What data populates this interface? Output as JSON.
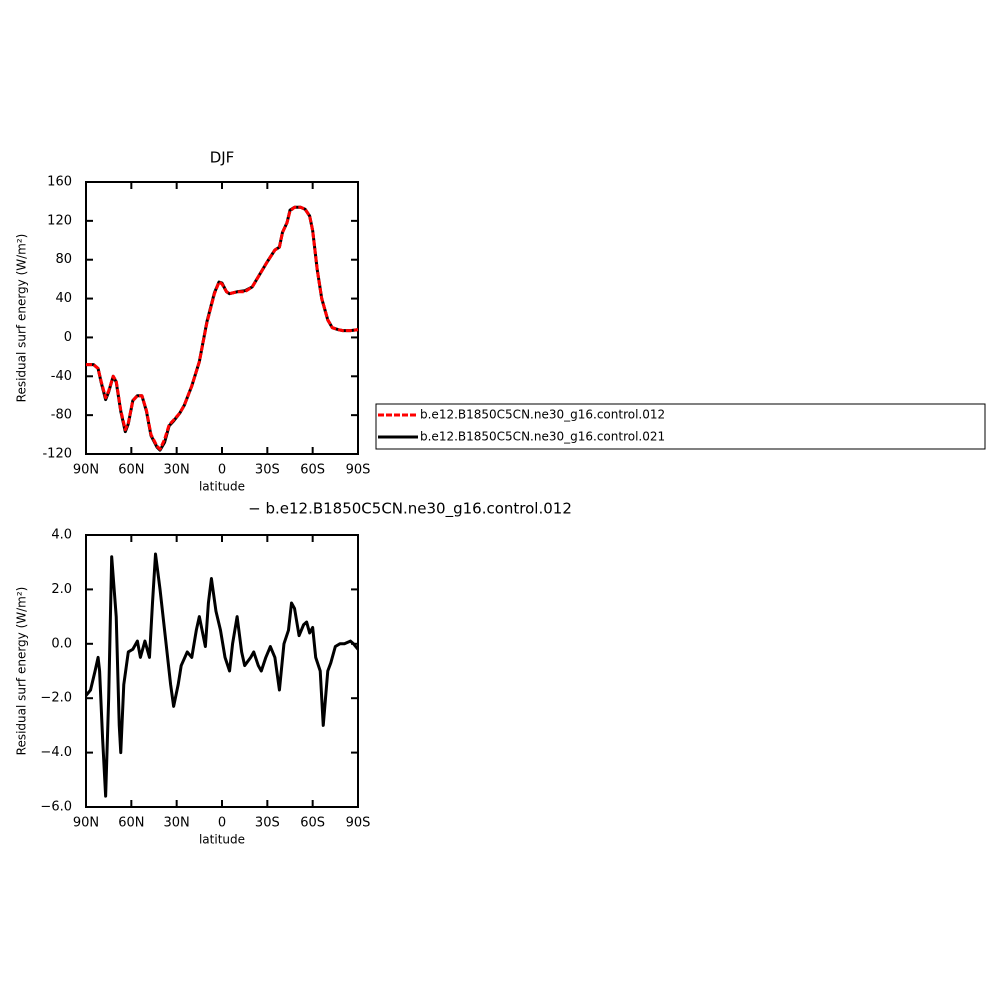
{
  "chart_data": [
    {
      "type": "line",
      "title": "DJF",
      "xlabel": "latitude",
      "ylabel": "Residual surf energy (W/m²)",
      "x": [
        90,
        85,
        82,
        80,
        77,
        75,
        72,
        70,
        67,
        64,
        62,
        59,
        56,
        53,
        50,
        47,
        43,
        41,
        38,
        35,
        32,
        28,
        25,
        20,
        15,
        10,
        5,
        2,
        0,
        -3,
        -5,
        -10,
        -15,
        -20,
        -25,
        -30,
        -35,
        -38,
        -40,
        -43,
        -45,
        -48,
        -52,
        -55,
        -58,
        -60,
        -63,
        -66,
        -70,
        -73,
        -77,
        -80,
        -85,
        -90
      ],
      "series": [
        {
          "name": "b.e12.B1850C5CN.ne30_g16.control.012",
          "color": "#ff0000",
          "dashed": true,
          "values": [
            -28,
            -28,
            -32,
            -45,
            -62,
            -55,
            -40,
            -45,
            -75,
            -95,
            -88,
            -65,
            -60,
            -60,
            -75,
            -100,
            -112,
            -115,
            -105,
            -90,
            -85,
            -78,
            -70,
            -50,
            -25,
            15,
            45,
            57,
            55,
            47,
            45,
            47,
            47,
            52,
            65,
            78,
            90,
            93,
            108,
            118,
            130,
            134,
            134,
            132,
            125,
            110,
            70,
            40,
            18,
            10,
            8,
            7,
            7,
            8
          ]
        },
        {
          "name": "b.e12.B1850C5CN.ne30_g16.control.021",
          "color": "#000000",
          "values": [
            -28,
            -28,
            -32,
            -46,
            -64,
            -56,
            -40,
            -46,
            -76,
            -97,
            -89,
            -65,
            -60,
            -60,
            -76,
            -101,
            -113,
            -116,
            -108,
            -91,
            -86,
            -78,
            -70,
            -50,
            -25,
            16,
            46,
            57,
            56,
            47,
            45,
            47,
            48,
            52,
            65,
            78,
            90,
            93,
            108,
            118,
            131,
            134,
            134,
            132,
            125,
            110,
            70,
            40,
            18,
            10,
            8,
            7,
            7,
            8
          ]
        }
      ],
      "xlim": [
        90,
        -90
      ],
      "xticks": [
        {
          "value": 90,
          "label": "90N"
        },
        {
          "value": 60,
          "label": "60N"
        },
        {
          "value": 30,
          "label": "30N"
        },
        0,
        {
          "value": -30,
          "label": "30S"
        },
        {
          "value": -60,
          "label": "60S"
        },
        {
          "value": -90,
          "label": "90S"
        }
      ],
      "ylim": [
        -120,
        160
      ],
      "yticks": [
        -120,
        -80,
        -40,
        0,
        40,
        80,
        120,
        160
      ],
      "legend": "right"
    },
    {
      "type": "line",
      "title": "− b.e12.B1850C5CN.ne30_g16.control.012",
      "xlabel": "latitude",
      "ylabel": "Residual surf energy (W/m²)",
      "x": [
        90,
        87,
        84,
        82,
        81,
        79,
        77,
        75,
        73,
        70,
        68,
        67,
        65,
        62,
        59,
        56,
        54,
        51,
        48,
        46,
        44,
        41,
        38,
        34,
        32,
        29,
        27,
        23,
        20,
        17,
        15,
        11,
        9,
        7,
        4,
        1,
        -2,
        -5,
        -7,
        -10,
        -13,
        -15,
        -19,
        -21,
        -24,
        -26,
        -29,
        -32,
        -35,
        -38,
        -41,
        -44,
        -46,
        -48,
        -51,
        -54,
        -56,
        -58,
        -60,
        -62,
        -65,
        -67,
        -70,
        -72,
        -75,
        -78,
        -81,
        -85,
        -87,
        -90
      ],
      "series": [
        {
          "color": "#000000",
          "values": [
            -1.9,
            -1.7,
            -1.0,
            -0.5,
            -1.0,
            -3.5,
            -5.6,
            -2.0,
            3.2,
            1.0,
            -3.0,
            -4.0,
            -1.5,
            -0.3,
            -0.2,
            0.1,
            -0.5,
            0.1,
            -0.5,
            1.5,
            3.3,
            2.0,
            0.5,
            -1.5,
            -2.3,
            -1.5,
            -0.8,
            -0.3,
            -0.5,
            0.5,
            1.0,
            -0.1,
            1.5,
            2.4,
            1.2,
            0.5,
            -0.5,
            -1.0,
            0.0,
            1.0,
            -0.3,
            -0.8,
            -0.5,
            -0.3,
            -0.8,
            -1.0,
            -0.5,
            -0.1,
            -0.5,
            -1.7,
            0.0,
            0.5,
            1.5,
            1.3,
            0.3,
            0.7,
            0.8,
            0.4,
            0.6,
            -0.5,
            -1.0,
            -3.0,
            -1.0,
            -0.7,
            -0.1,
            0.0,
            0.0,
            0.1,
            0.0,
            -0.2
          ]
        }
      ],
      "xlim": [
        90,
        -90
      ],
      "xticks": [
        {
          "value": 90,
          "label": "90N"
        },
        {
          "value": 60,
          "label": "60N"
        },
        {
          "value": 30,
          "label": "30N"
        },
        0,
        {
          "value": -30,
          "label": "30S"
        },
        {
          "value": -60,
          "label": "60S"
        },
        {
          "value": -90,
          "label": "90S"
        }
      ],
      "ylim": [
        -6,
        4
      ],
      "yticks": [
        {
          "value": -6,
          "label": "−6.0"
        },
        {
          "value": -4,
          "label": "−4.0"
        },
        {
          "value": -2,
          "label": "−2.0"
        },
        {
          "value": 0,
          "label": "0.0"
        },
        {
          "value": 2,
          "label": "2.0"
        },
        {
          "value": 4,
          "label": "4.0"
        }
      ]
    }
  ]
}
